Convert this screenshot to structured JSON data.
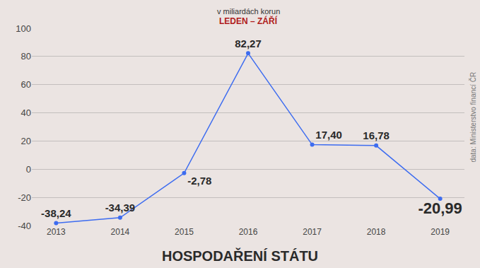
{
  "chart_data": {
    "type": "line",
    "title": "HOSPODAŘENÍ STÁTU",
    "subtitle": "v miliardách korun",
    "annotations": [
      "LEDEN – ZÁŘÍ"
    ],
    "source": "data: Ministerstvo financí ČR",
    "categories": [
      "2013",
      "2014",
      "2015",
      "2016",
      "2017",
      "2018",
      "2019"
    ],
    "values": [
      -38.24,
      -34.39,
      -2.78,
      82.27,
      17.4,
      16.78,
      -20.99
    ],
    "value_labels": [
      "-38,24",
      "-34,39",
      "-2,78",
      "82,27",
      "17,40",
      "16,78",
      "-20,99"
    ],
    "color": "#3d6cf0",
    "marker": "circle",
    "line_style": "solid",
    "data_labels": true,
    "ylim": [
      -40,
      100
    ],
    "yticks": [
      -40,
      -20,
      0,
      20,
      40,
      60,
      80,
      100
    ],
    "grid": true
  }
}
